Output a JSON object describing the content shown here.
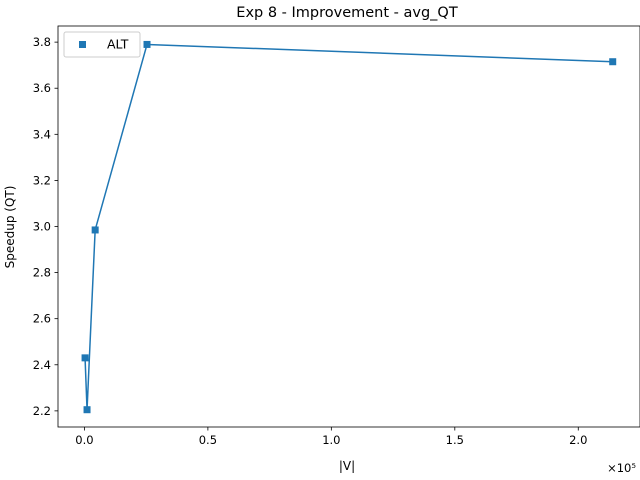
{
  "chart_data": {
    "type": "line",
    "title": "Exp 8 - Improvement - avg_QT",
    "xlabel": "|V|",
    "ylabel": "Speedup (QT)",
    "x_scale_label": "×10⁵",
    "x_tick_values": [
      0,
      0.5,
      1.0,
      1.5,
      2.0
    ],
    "x_tick_labels": [
      "0.0",
      "0.5",
      "1.0",
      "1.5",
      "2.0"
    ],
    "y_tick_values": [
      2.2,
      2.4,
      2.6,
      2.8,
      3.0,
      3.2,
      3.4,
      3.6,
      3.8
    ],
    "y_tick_labels": [
      "2.2",
      "2.4",
      "2.6",
      "2.8",
      "3.0",
      "3.2",
      "3.4",
      "3.6",
      "3.8"
    ],
    "xlim": [
      -0.107,
      2.25
    ],
    "ylim": [
      2.13,
      3.87
    ],
    "grid": false,
    "legend_position": "top-left",
    "series": [
      {
        "name": "ALT",
        "color": "#1f77b4",
        "marker": "square",
        "x": [
          0.0026,
          0.0106,
          0.0435,
          0.2535,
          2.1395
        ],
        "y": [
          2.43,
          2.205,
          2.985,
          3.79,
          3.715
        ]
      }
    ]
  }
}
